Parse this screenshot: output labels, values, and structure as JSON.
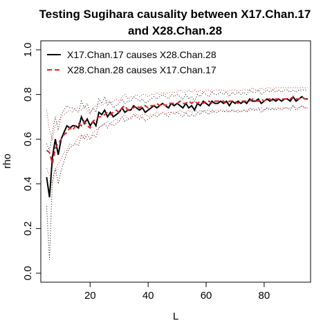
{
  "chart_data": {
    "type": "line",
    "title": "Testing Sugihara causality between  X17.Chan.17 and X28.Chan.28",
    "title_lines": [
      "Testing Sugihara causality between  X17.Chan.17",
      "and X28.Chan.28"
    ],
    "xlabel": "L",
    "ylabel": "rho",
    "xlim": [
      3,
      96
    ],
    "ylim": [
      0.0,
      1.0
    ],
    "x_ticks": [
      20,
      40,
      60,
      80
    ],
    "y_ticks": [
      0.0,
      0.2,
      0.4,
      0.6,
      0.8,
      1.0
    ],
    "y_tick_labels": [
      "0.0",
      "0.2",
      "0.4",
      "0.6",
      "0.8",
      "1.0"
    ],
    "legend_position": "top-left",
    "legend": [
      {
        "label": "X17.Chan.17 causes X28.Chan.28",
        "color": "#000000",
        "style": "solid"
      },
      {
        "label": "X28.Chan.28 causes X17.Chan.17",
        "color": "#d62728",
        "style": "dashed"
      }
    ],
    "x": [
      5,
      6,
      7,
      8,
      9,
      10,
      11,
      12,
      13,
      14,
      15,
      16,
      17,
      18,
      19,
      20,
      21,
      22,
      23,
      24,
      25,
      26,
      27,
      28,
      29,
      30,
      31,
      32,
      33,
      34,
      35,
      36,
      37,
      38,
      39,
      40,
      41,
      42,
      43,
      44,
      45,
      46,
      47,
      48,
      49,
      50,
      51,
      52,
      53,
      54,
      55,
      56,
      57,
      58,
      59,
      60,
      61,
      62,
      63,
      64,
      65,
      66,
      67,
      68,
      69,
      70,
      71,
      72,
      73,
      74,
      75,
      76,
      77,
      78,
      79,
      80,
      81,
      82,
      83,
      84,
      85,
      86,
      87,
      88,
      89,
      90,
      91,
      92,
      93,
      94,
      95
    ],
    "series": [
      {
        "name": "X17.Chan.17 causes X28.Chan.28",
        "color": "#000000",
        "dash": "solid",
        "values": [
          0.43,
          0.34,
          0.52,
          0.6,
          0.53,
          0.6,
          0.63,
          0.66,
          0.65,
          0.66,
          0.66,
          0.65,
          0.7,
          0.67,
          0.69,
          0.66,
          0.68,
          0.66,
          0.72,
          0.71,
          0.73,
          0.7,
          0.72,
          0.7,
          0.71,
          0.72,
          0.74,
          0.72,
          0.73,
          0.73,
          0.75,
          0.74,
          0.73,
          0.74,
          0.72,
          0.73,
          0.74,
          0.75,
          0.74,
          0.75,
          0.76,
          0.75,
          0.74,
          0.76,
          0.75,
          0.76,
          0.75,
          0.74,
          0.76,
          0.74,
          0.75,
          0.73,
          0.76,
          0.75,
          0.77,
          0.76,
          0.75,
          0.77,
          0.76,
          0.76,
          0.77,
          0.76,
          0.77,
          0.75,
          0.77,
          0.76,
          0.77,
          0.76,
          0.77,
          0.76,
          0.78,
          0.77,
          0.77,
          0.78,
          0.76,
          0.77,
          0.78,
          0.77,
          0.78,
          0.77,
          0.78,
          0.77,
          0.78,
          0.78,
          0.77,
          0.79,
          0.77,
          0.78,
          0.79,
          0.78,
          0.78
        ]
      },
      {
        "name": "X28.Chan.28 causes X17.Chan.17",
        "color": "#d62728",
        "dash": "dashed",
        "values": [
          0.55,
          0.54,
          0.49,
          0.56,
          0.58,
          0.6,
          0.62,
          0.63,
          0.65,
          0.64,
          0.66,
          0.67,
          0.66,
          0.68,
          0.66,
          0.65,
          0.68,
          0.69,
          0.7,
          0.7,
          0.71,
          0.72,
          0.71,
          0.72,
          0.73,
          0.72,
          0.74,
          0.75,
          0.73,
          0.74,
          0.74,
          0.75,
          0.74,
          0.75,
          0.75,
          0.74,
          0.75,
          0.75,
          0.76,
          0.75,
          0.76,
          0.75,
          0.76,
          0.76,
          0.76,
          0.76,
          0.77,
          0.76,
          0.76,
          0.77,
          0.76,
          0.77,
          0.76,
          0.77,
          0.76,
          0.77,
          0.77,
          0.76,
          0.77,
          0.77,
          0.77,
          0.77,
          0.76,
          0.77,
          0.77,
          0.77,
          0.76,
          0.77,
          0.77,
          0.77,
          0.77,
          0.78,
          0.77,
          0.77,
          0.78,
          0.77,
          0.78,
          0.78,
          0.77,
          0.78,
          0.78,
          0.78,
          0.78,
          0.78,
          0.78,
          0.79,
          0.78,
          0.78,
          0.79,
          0.78,
          0.78
        ]
      }
    ],
    "band_series": [
      {
        "color": "#000000",
        "dash": "dotted",
        "values": [
          0.3,
          0.06,
          0.42,
          0.47,
          0.4,
          0.46,
          0.5,
          0.54,
          0.56,
          0.57,
          0.58,
          0.57,
          0.62,
          0.6,
          0.62,
          0.6,
          0.62,
          0.61,
          0.65,
          0.66,
          0.67,
          0.65,
          0.67,
          0.66,
          0.67,
          0.68,
          0.7,
          0.68,
          0.69,
          0.69,
          0.71,
          0.7,
          0.69,
          0.7,
          0.68,
          0.69,
          0.7,
          0.71,
          0.7,
          0.71,
          0.72,
          0.71,
          0.7,
          0.72,
          0.71,
          0.72,
          0.71,
          0.7,
          0.72,
          0.7,
          0.71,
          0.7,
          0.72,
          0.71,
          0.73,
          0.72,
          0.71,
          0.73,
          0.72,
          0.72,
          0.73,
          0.72,
          0.73,
          0.72,
          0.73,
          0.72,
          0.73,
          0.72,
          0.73,
          0.72,
          0.74,
          0.73,
          0.73,
          0.74,
          0.72,
          0.73,
          0.74,
          0.73,
          0.74,
          0.73,
          0.74,
          0.73,
          0.74,
          0.74,
          0.73,
          0.75,
          0.73,
          0.74,
          0.75,
          0.74,
          0.74
        ]
      },
      {
        "color": "#000000",
        "dash": "dotted",
        "values": [
          0.58,
          0.55,
          0.63,
          0.7,
          0.64,
          0.71,
          0.73,
          0.75,
          0.74,
          0.74,
          0.73,
          0.72,
          0.77,
          0.74,
          0.76,
          0.72,
          0.74,
          0.72,
          0.78,
          0.76,
          0.79,
          0.75,
          0.77,
          0.74,
          0.75,
          0.76,
          0.78,
          0.76,
          0.77,
          0.77,
          0.79,
          0.78,
          0.77,
          0.78,
          0.76,
          0.77,
          0.78,
          0.79,
          0.78,
          0.79,
          0.8,
          0.79,
          0.78,
          0.8,
          0.79,
          0.8,
          0.79,
          0.78,
          0.8,
          0.78,
          0.79,
          0.77,
          0.8,
          0.79,
          0.81,
          0.8,
          0.79,
          0.81,
          0.8,
          0.8,
          0.81,
          0.8,
          0.81,
          0.79,
          0.81,
          0.8,
          0.81,
          0.8,
          0.81,
          0.8,
          0.82,
          0.81,
          0.81,
          0.82,
          0.8,
          0.81,
          0.82,
          0.81,
          0.82,
          0.81,
          0.82,
          0.81,
          0.82,
          0.82,
          0.81,
          0.82,
          0.81,
          0.82,
          0.82,
          0.82,
          0.82
        ]
      },
      {
        "color": "#d62728",
        "dash": "dotted",
        "values": [
          0.47,
          0.44,
          0.4,
          0.46,
          0.49,
          0.51,
          0.54,
          0.55,
          0.58,
          0.57,
          0.59,
          0.61,
          0.6,
          0.62,
          0.6,
          0.6,
          0.63,
          0.64,
          0.65,
          0.66,
          0.67,
          0.68,
          0.67,
          0.68,
          0.69,
          0.68,
          0.7,
          0.71,
          0.69,
          0.7,
          0.7,
          0.71,
          0.7,
          0.71,
          0.71,
          0.7,
          0.71,
          0.71,
          0.72,
          0.71,
          0.72,
          0.71,
          0.72,
          0.72,
          0.72,
          0.72,
          0.73,
          0.72,
          0.72,
          0.73,
          0.72,
          0.73,
          0.72,
          0.73,
          0.72,
          0.73,
          0.73,
          0.72,
          0.73,
          0.73,
          0.73,
          0.73,
          0.72,
          0.73,
          0.73,
          0.73,
          0.72,
          0.73,
          0.73,
          0.73,
          0.73,
          0.74,
          0.73,
          0.73,
          0.74,
          0.73,
          0.74,
          0.74,
          0.73,
          0.74,
          0.74,
          0.74,
          0.74,
          0.74,
          0.74,
          0.75,
          0.74,
          0.74,
          0.75,
          0.74,
          0.74
        ]
      },
      {
        "color": "#d62728",
        "dash": "dotted",
        "values": [
          0.73,
          0.64,
          0.6,
          0.66,
          0.68,
          0.7,
          0.71,
          0.72,
          0.73,
          0.72,
          0.74,
          0.74,
          0.73,
          0.75,
          0.73,
          0.71,
          0.74,
          0.75,
          0.76,
          0.75,
          0.76,
          0.77,
          0.76,
          0.77,
          0.78,
          0.77,
          0.79,
          0.8,
          0.78,
          0.79,
          0.79,
          0.8,
          0.79,
          0.8,
          0.8,
          0.79,
          0.8,
          0.8,
          0.81,
          0.8,
          0.81,
          0.8,
          0.81,
          0.81,
          0.81,
          0.81,
          0.82,
          0.81,
          0.81,
          0.82,
          0.81,
          0.82,
          0.81,
          0.82,
          0.81,
          0.82,
          0.82,
          0.81,
          0.82,
          0.82,
          0.82,
          0.82,
          0.81,
          0.82,
          0.82,
          0.82,
          0.81,
          0.82,
          0.82,
          0.82,
          0.82,
          0.83,
          0.82,
          0.82,
          0.83,
          0.82,
          0.83,
          0.83,
          0.82,
          0.83,
          0.83,
          0.83,
          0.83,
          0.83,
          0.83,
          0.83,
          0.83,
          0.83,
          0.83,
          0.83,
          0.83
        ]
      }
    ]
  }
}
